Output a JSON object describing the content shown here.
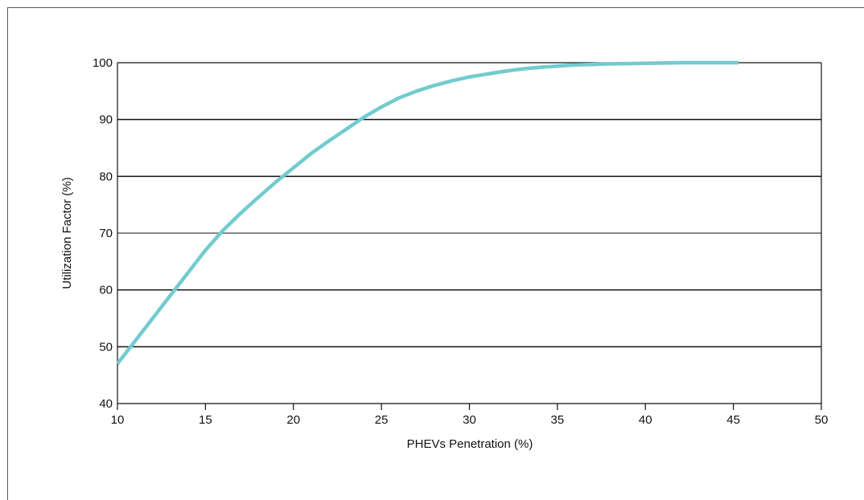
{
  "chart_data": {
    "type": "line",
    "title": "",
    "xlabel": "PHEVs Penetration (%)",
    "ylabel": "Utilization Factor (%)",
    "xlim": [
      10,
      50
    ],
    "ylim": [
      40,
      100
    ],
    "x_ticks": [
      "10",
      "15",
      "20",
      "25",
      "30",
      "35",
      "40",
      "45",
      "50"
    ],
    "y_ticks": [
      "40",
      "50",
      "60",
      "70",
      "80",
      "90",
      "100"
    ],
    "grid": "horizontal",
    "series": [
      {
        "color": "#72cbcf",
        "x": [
          10,
          11,
          12,
          13,
          14,
          15,
          16,
          17,
          18,
          19,
          20,
          21,
          22,
          23,
          24,
          25,
          26,
          27,
          28,
          29,
          30,
          31,
          32,
          33,
          34,
          35,
          36,
          37,
          38,
          39,
          40,
          41,
          42,
          43,
          44,
          45.3
        ],
        "y": [
          47,
          51,
          55,
          59,
          63,
          67,
          70.5,
          73.5,
          76.3,
          79,
          81.5,
          84,
          86.2,
          88.3,
          90.4,
          92.2,
          93.8,
          95,
          96,
          96.8,
          97.5,
          98,
          98.5,
          98.9,
          99.2,
          99.4,
          99.6,
          99.7,
          99.8,
          99.85,
          99.9,
          99.95,
          100,
          100,
          100,
          100
        ]
      }
    ]
  }
}
